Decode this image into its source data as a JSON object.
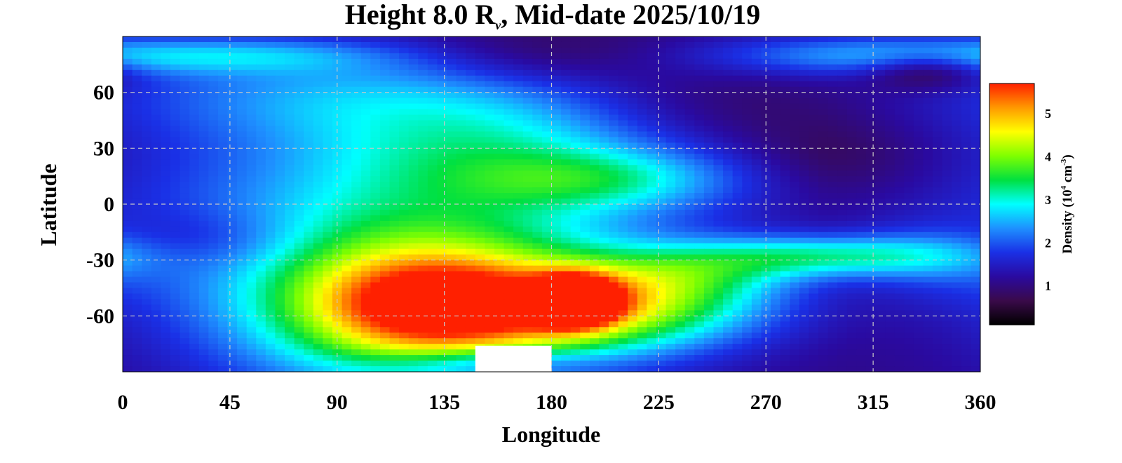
{
  "chart_data": {
    "type": "heatmap",
    "title_main": "Height 8.0 R",
    "title_subscript": "ν",
    "title_rest": ", Mid-date 2025/10/19",
    "xlabel": "Longitude",
    "ylabel": "Latitude",
    "xlim": [
      0,
      360
    ],
    "ylim": [
      -90,
      90
    ],
    "x_ticks": [
      0,
      45,
      90,
      135,
      180,
      225,
      270,
      315,
      360
    ],
    "x_tick_labels": [
      "0",
      "45",
      "90",
      "135",
      "180",
      "225",
      "270",
      "315",
      "360"
    ],
    "y_ticks": [
      60,
      30,
      0,
      -30,
      -60
    ],
    "y_tick_labels": [
      "60",
      "30",
      "0",
      "-30",
      "-60"
    ],
    "grid": true,
    "colorbar": {
      "label_prefix": "Density (10",
      "label_exp1": "4",
      "label_mid": " cm",
      "label_exp2": "-3",
      "label_suffix": ")",
      "range": [
        0.1,
        5.7
      ],
      "ticks": [
        1,
        2,
        3,
        4,
        5
      ],
      "tick_labels": [
        "1",
        "2",
        "3",
        "4",
        "5"
      ],
      "colors": [
        "#000000",
        "#3a0a4a",
        "#2a0aa0",
        "#1a30e6",
        "#1e90ff",
        "#00ffff",
        "#00e040",
        "#7fff00",
        "#ffff00",
        "#ff9900",
        "#ff2000"
      ]
    },
    "background_density": 1.05,
    "features": [
      {
        "lon": 115,
        "lat": 2,
        "dlon": 90,
        "dlat": 40,
        "density": 1.1
      },
      {
        "lon": 125,
        "lat": -55,
        "dlon": 62,
        "dlat": 36,
        "density": 2.6
      },
      {
        "lon": 127,
        "lat": -55,
        "dlon": 35,
        "dlat": 20,
        "density": 2.2
      },
      {
        "lon": 205,
        "lat": -55,
        "dlon": 45,
        "dlat": 16,
        "density": 2.5
      },
      {
        "lon": 190,
        "lat": -52,
        "dlon": 12,
        "dlat": 9,
        "density": 3.6
      },
      {
        "lon": 160,
        "lat": 30,
        "dlon": 55,
        "dlat": 22,
        "density": 1.1
      },
      {
        "lon": 205,
        "lat": 13,
        "dlon": 40,
        "dlat": 11,
        "density": 1.0
      },
      {
        "lon": 90,
        "lat": 60,
        "dlon": 70,
        "dlat": 18,
        "density": 1.0
      },
      {
        "lon": 45,
        "lat": 80,
        "dlon": 50,
        "dlat": 7,
        "density": 1.0
      },
      {
        "lon": 295,
        "lat": -28,
        "dlon": 42,
        "dlat": 8,
        "density": 1.8
      },
      {
        "lon": 310,
        "lat": 80,
        "dlon": 50,
        "dlat": 8,
        "density": 1.2
      },
      {
        "lon": 240,
        "lat": -38,
        "dlon": 30,
        "dlat": 10,
        "density": 0.9
      },
      {
        "lon": 345,
        "lat": -30,
        "dlon": 25,
        "dlat": 15,
        "density": 0.5
      }
    ],
    "low_features": [
      {
        "lon": 338,
        "lat": 72,
        "dlon": 18,
        "dlat": 7,
        "density": -1.0
      },
      {
        "lon": 175,
        "lat": 80,
        "dlon": 40,
        "dlat": 12,
        "density": -0.5
      },
      {
        "lon": 35,
        "lat": -20,
        "dlon": 30,
        "dlat": 12,
        "density": -0.5
      },
      {
        "lon": 300,
        "lat": 25,
        "dlon": 30,
        "dlat": 15,
        "density": -0.4
      },
      {
        "lon": 240,
        "lat": 50,
        "dlon": 40,
        "dlat": 15,
        "density": -0.4
      },
      {
        "lon": 150,
        "lat": -85,
        "dlon": 30,
        "dlat": 5,
        "density": -0.8
      }
    ],
    "no_data_region": {
      "lon_min": 148,
      "lon_max": 180,
      "lat_min": -90,
      "lat_max": -76
    }
  }
}
